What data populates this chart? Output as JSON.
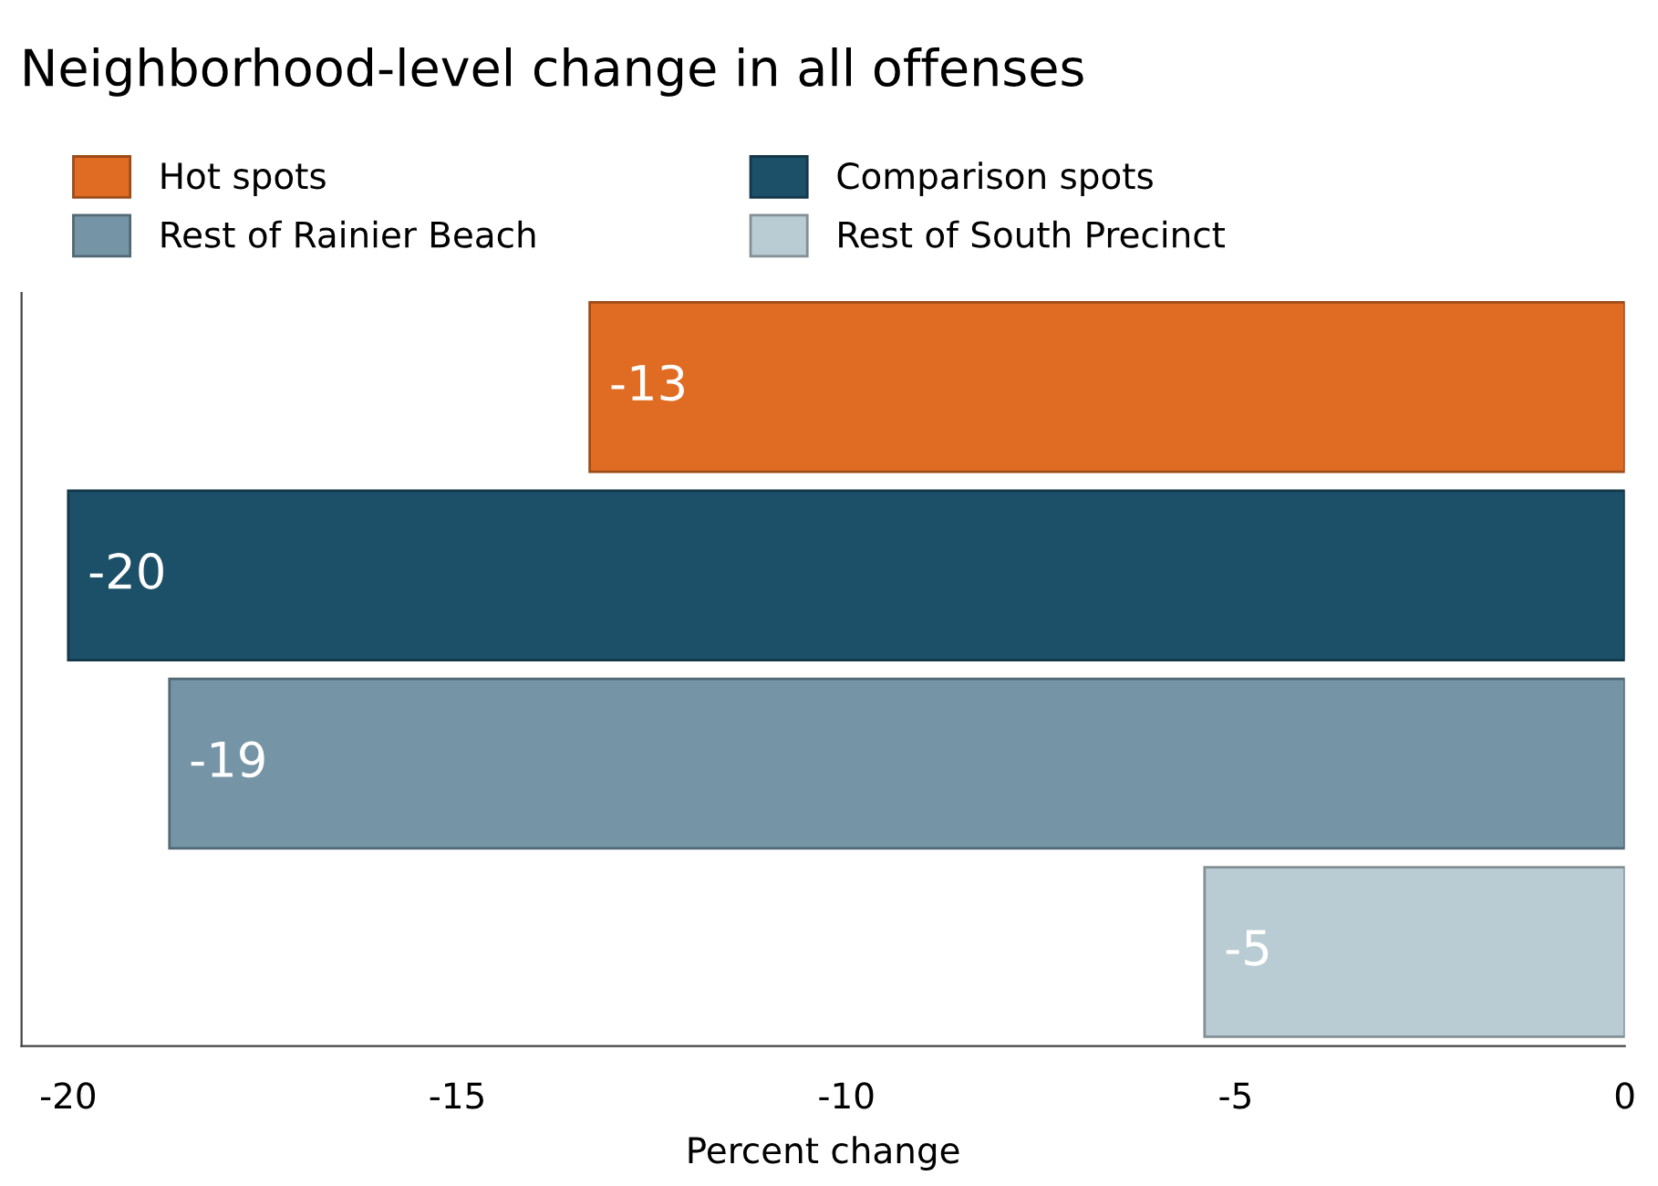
{
  "chart_data": {
    "type": "bar",
    "orientation": "horizontal",
    "title": "Neighborhood-level change in all offenses",
    "xlabel": "Percent change",
    "categories": [
      null,
      null,
      null,
      null
    ],
    "series": [
      {
        "name": "Hot spots",
        "color": "#e06c24",
        "values": [
          -13.3,
          null,
          null,
          null
        ],
        "value_labels": [
          "-13",
          null,
          null,
          null
        ]
      },
      {
        "name": "Comparison spots",
        "color": "#1c4f68",
        "values": [
          null,
          -20,
          null,
          null
        ],
        "value_labels": [
          null,
          "-20",
          null,
          null
        ]
      },
      {
        "name": "Rest of Rainier Beach",
        "color": "#7595a6",
        "values": [
          null,
          null,
          -18.7,
          null
        ],
        "value_labels": [
          null,
          null,
          "-19",
          null
        ]
      },
      {
        "name": "Rest of South Precinct",
        "color": "#b9ccd3",
        "values": [
          null,
          null,
          null,
          -5.4
        ],
        "value_labels": [
          null,
          null,
          null,
          "-5"
        ]
      }
    ],
    "xlim": [
      -20.6,
      0
    ],
    "xticks": [
      -20,
      -15,
      -10,
      -5,
      0
    ],
    "grid": false,
    "legend": "top left"
  }
}
